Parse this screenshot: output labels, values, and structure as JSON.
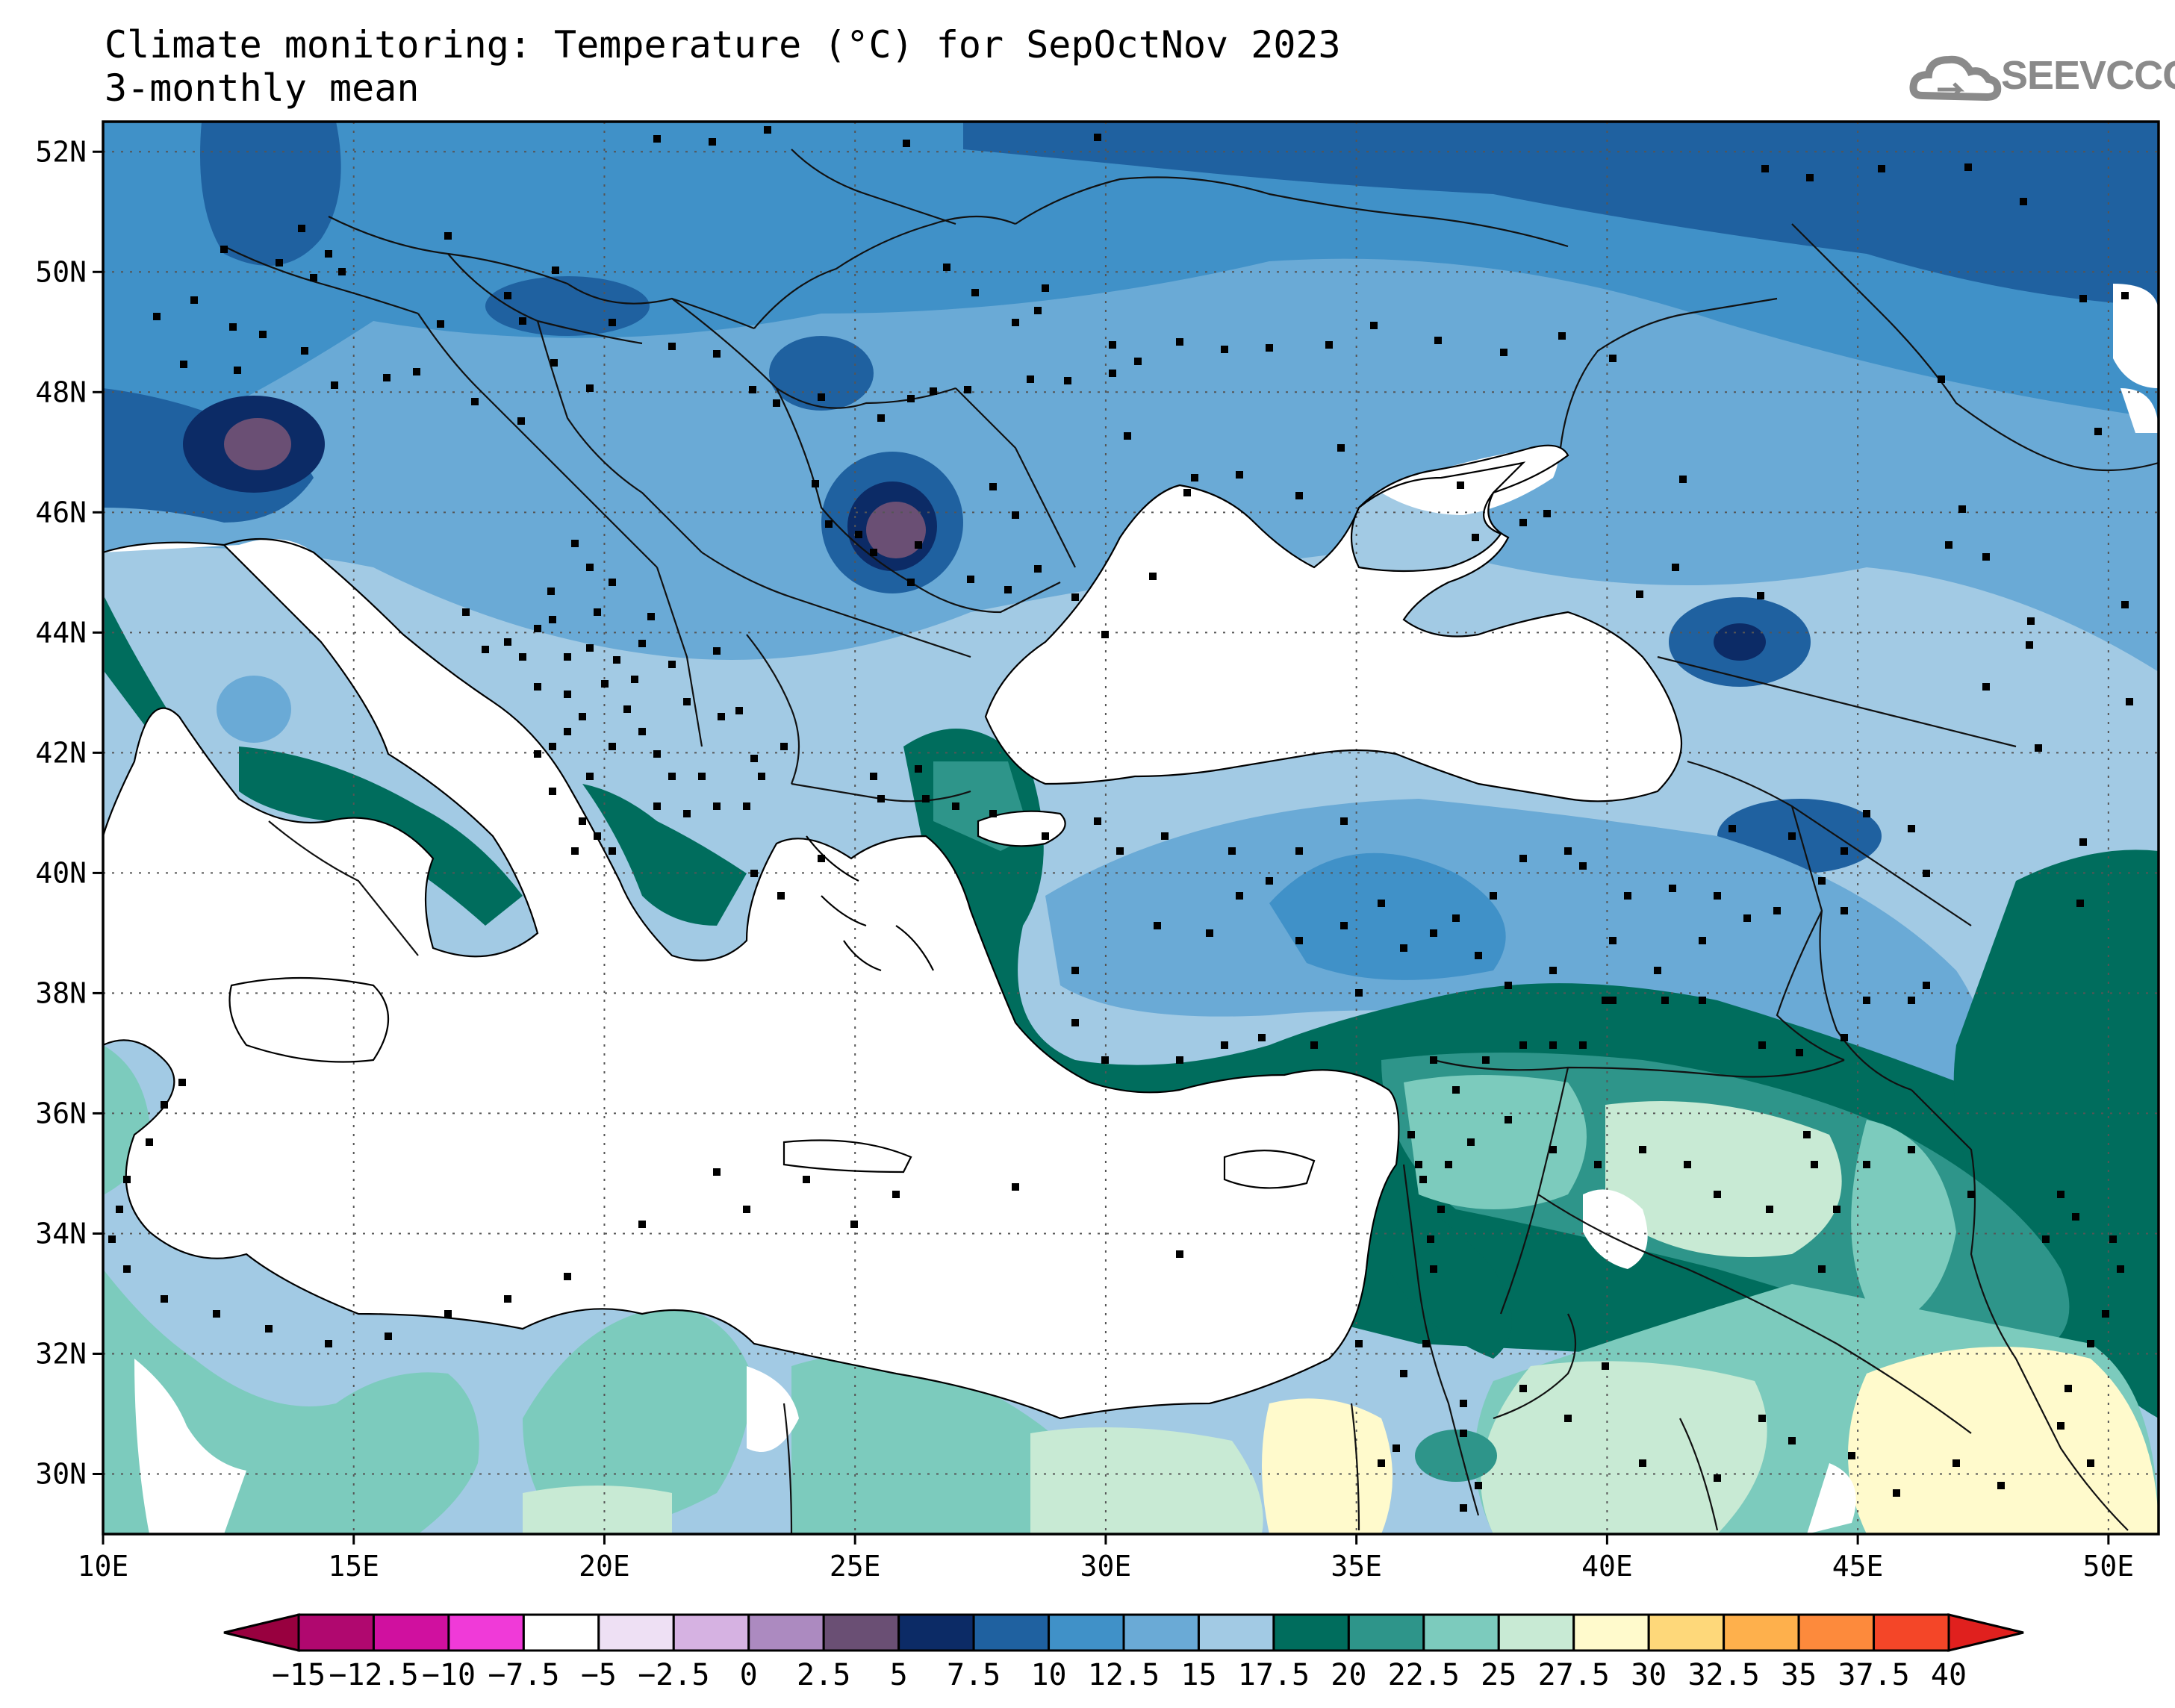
{
  "title": {
    "line1": "Climate monitoring: Temperature (°C) for SepOctNov 2023",
    "line2": "3-monthly mean"
  },
  "logo": {
    "text": "SEEVCCC",
    "icon": "cloud-icon"
  },
  "map": {
    "lon_range": [
      10,
      51
    ],
    "lat_range": [
      29,
      52.5
    ],
    "lat_ticks": [
      "52N",
      "50N",
      "48N",
      "46N",
      "44N",
      "42N",
      "40N",
      "38N",
      "36N",
      "34N",
      "32N",
      "30N"
    ],
    "lon_ticks": [
      "10E",
      "15E",
      "20E",
      "25E",
      "30E",
      "35E",
      "40E",
      "45E",
      "50E"
    ],
    "gridlines": "dotted"
  },
  "colorbar": {
    "labels": [
      "-15",
      "-12.5",
      "-10",
      "-7.5",
      "-5",
      "-2.5",
      "0",
      "2.5",
      "5",
      "7.5",
      "10",
      "12.5",
      "15",
      "17.5",
      "20",
      "22.5",
      "25",
      "27.5",
      "30",
      "32.5",
      "35",
      "37.5",
      "40"
    ],
    "colors": [
      "#98003f",
      "#b0086f",
      "#d0109f",
      "#f03ad8",
      "#ffffff",
      "#eee0f4",
      "#d6b2e2",
      "#ac8ac0",
      "#6a4f74",
      "#0c2b66",
      "#1f61a0",
      "#4091c8",
      "#6aaad6",
      "#a2cae4",
      "#006d5d",
      "#2e958a",
      "#7ccbbd",
      "#c8ead4",
      "#fffacc",
      "#fed87a",
      "#feb04c",
      "#fd8a3c",
      "#f44628",
      "#e0201e"
    ]
  },
  "key_colors": {
    "cold_core": "#6a4f74",
    "deep_blue": "#1f61a0",
    "mid_blue": "#4091c8",
    "light_blue": "#a2cae4",
    "teal_dark": "#006d5d",
    "teal_mid": "#2e958a",
    "teal_light": "#7ccbbd",
    "mint": "#c8ead4",
    "pale_yellow": "#fffacc"
  }
}
